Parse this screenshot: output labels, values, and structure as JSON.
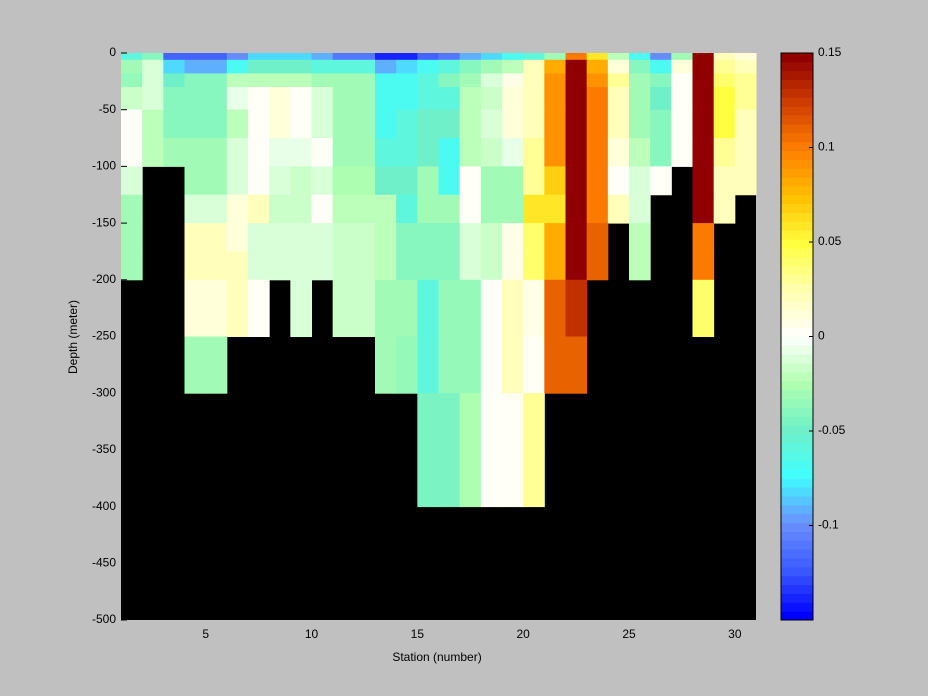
{
  "chart_data": {
    "type": "heatmap",
    "xlabel": "Station (number)",
    "ylabel": "Depth (meter)",
    "x_bins": [
      1,
      2,
      3,
      4,
      5,
      6,
      7,
      8,
      9,
      10,
      11,
      12,
      13,
      14,
      15,
      16,
      17,
      18,
      19,
      20,
      21,
      22,
      23,
      24,
      25,
      26,
      27,
      28,
      29,
      30,
      31
    ],
    "y_bins": [
      0,
      -6,
      -18,
      -30,
      -50,
      -75,
      -100,
      -125,
      -150,
      -175,
      -200,
      -250,
      -300,
      -350,
      -400
    ],
    "z": [
      [
        -0.06,
        -0.04,
        -0.12,
        -0.12,
        -0.12,
        -0.1,
        -0.08,
        -0.08,
        -0.08,
        -0.09,
        -0.11,
        -0.11,
        -0.14,
        -0.14,
        -0.12,
        -0.11,
        -0.09,
        -0.08,
        -0.07,
        -0.06,
        -0.03,
        0.1,
        0.06,
        -0.02,
        -0.07,
        -0.1,
        -0.03,
        0.15,
        0.02,
        0.01
      ],
      [
        -0.03,
        -0.01,
        -0.08,
        -0.09,
        -0.09,
        -0.07,
        -0.05,
        -0.05,
        -0.05,
        -0.06,
        -0.06,
        -0.06,
        -0.09,
        -0.08,
        -0.07,
        -0.06,
        -0.04,
        -0.03,
        -0.02,
        0.02,
        0.08,
        0.15,
        0.08,
        0.01,
        -0.04,
        -0.07,
        0.01,
        0.15,
        0.03,
        0.02
      ],
      [
        -0.035,
        -0.01,
        -0.05,
        -0.04,
        -0.04,
        -0.02,
        -0.02,
        -0.02,
        -0.02,
        -0.03,
        -0.03,
        -0.03,
        -0.07,
        -0.07,
        -0.06,
        -0.04,
        -0.03,
        -0.01,
        0.005,
        0.02,
        0.09,
        0.15,
        0.09,
        0.03,
        -0.03,
        -0.04,
        0,
        0.15,
        0.04,
        0.03
      ],
      [
        -0.015,
        -0.01,
        -0.04,
        -0.04,
        -0.04,
        -0.005,
        0,
        0.01,
        0,
        -0.01,
        -0.03,
        -0.03,
        -0.07,
        -0.07,
        -0.06,
        -0.06,
        -0.02,
        -0.015,
        0.01,
        0.02,
        0.09,
        0.15,
        0.1,
        0.02,
        -0.03,
        -0.05,
        0,
        0.15,
        0.05,
        0.03
      ],
      [
        0,
        -0.02,
        -0.04,
        -0.04,
        -0.04,
        -0.02,
        0,
        0.01,
        0,
        -0.01,
        -0.03,
        -0.03,
        -0.07,
        -0.06,
        -0.05,
        -0.05,
        -0.02,
        -0.01,
        0.01,
        0.02,
        0.09,
        0.15,
        0.1,
        0.02,
        -0.03,
        -0.04,
        0,
        0.15,
        0.05,
        0.02
      ],
      [
        0,
        -0.02,
        -0.03,
        -0.03,
        -0.03,
        -0.01,
        0,
        -0.005,
        -0.005,
        0,
        -0.03,
        -0.03,
        -0.06,
        -0.06,
        -0.05,
        -0.07,
        -0.02,
        -0.015,
        -0.005,
        0.03,
        0.09,
        0.15,
        0.1,
        0.01,
        -0.02,
        -0.04,
        0,
        0.15,
        0.03,
        0.02
      ],
      [
        -0.01,
        null,
        null,
        -0.03,
        -0.03,
        -0.01,
        0,
        -0.01,
        -0.015,
        -0.01,
        -0.025,
        -0.025,
        -0.05,
        -0.05,
        -0.03,
        -0.07,
        0,
        -0.03,
        -0.03,
        0.03,
        0.07,
        0.15,
        0.1,
        0,
        -0.01,
        0,
        null,
        0.15,
        0.02,
        0.02
      ],
      [
        -0.03,
        null,
        null,
        -0.01,
        -0.01,
        0.01,
        0.02,
        -0.015,
        -0.015,
        0,
        -0.02,
        -0.02,
        -0.02,
        -0.06,
        -0.03,
        -0.03,
        0,
        -0.03,
        -0.03,
        0.06,
        0.06,
        0.15,
        0.1,
        0.02,
        -0.01,
        null,
        null,
        0.15,
        0.02,
        null
      ],
      [
        -0.03,
        null,
        null,
        0.02,
        0.02,
        0.01,
        -0.01,
        -0.01,
        -0.01,
        -0.01,
        -0.015,
        -0.015,
        -0.02,
        -0.04,
        -0.04,
        -0.04,
        -0.01,
        -0.015,
        0.005,
        0.04,
        0.08,
        0.15,
        0.11,
        null,
        -0.02,
        null,
        null,
        0.1,
        null,
        null
      ],
      [
        -0.03,
        null,
        null,
        0.02,
        0.02,
        0.02,
        -0.01,
        -0.01,
        -0.01,
        -0.01,
        -0.015,
        -0.015,
        -0.02,
        -0.04,
        -0.04,
        -0.04,
        -0.01,
        -0.015,
        0.005,
        0.04,
        0.08,
        0.15,
        0.11,
        null,
        -0.02,
        null,
        null,
        0.1,
        null,
        null
      ],
      [
        null,
        null,
        null,
        0.01,
        0.01,
        0.02,
        0,
        null,
        -0.01,
        null,
        -0.015,
        -0.015,
        -0.03,
        -0.03,
        -0.06,
        -0.035,
        -0.035,
        0,
        0.02,
        0.005,
        0.11,
        0.13,
        null,
        null,
        null,
        null,
        null,
        0.04,
        null,
        null
      ],
      [
        null,
        null,
        null,
        -0.03,
        -0.03,
        null,
        null,
        null,
        null,
        null,
        null,
        null,
        -0.03,
        -0.035,
        -0.06,
        -0.035,
        -0.035,
        0,
        0.02,
        0,
        0.11,
        0.11,
        null,
        null,
        null,
        null,
        null,
        null,
        null,
        null
      ],
      [
        null,
        null,
        null,
        null,
        null,
        null,
        null,
        null,
        null,
        null,
        null,
        null,
        null,
        null,
        -0.045,
        -0.045,
        -0.025,
        0.003,
        0.003,
        0.03,
        null,
        null,
        null,
        null,
        null,
        null,
        null,
        null,
        null,
        null
      ],
      [
        null,
        null,
        null,
        null,
        null,
        null,
        null,
        null,
        null,
        null,
        null,
        null,
        null,
        null,
        -0.045,
        -0.045,
        -0.025,
        0.003,
        0.003,
        0.03,
        null,
        null,
        null,
        null,
        null,
        null,
        null,
        null,
        null,
        null
      ]
    ],
    "xlim": [
      1,
      31
    ],
    "xticks": [
      5,
      10,
      15,
      20,
      25,
      30
    ],
    "ylim": [
      -500,
      0
    ],
    "yticks": [
      0,
      -50,
      -100,
      -150,
      -200,
      -250,
      -300,
      -350,
      -400,
      -450,
      -500
    ],
    "clim": [
      -0.15,
      0.15
    ],
    "cticks": [
      0.15,
      0.1,
      0.05,
      0,
      -0.05,
      -0.1
    ],
    "colormap": [
      "#0000ff",
      "#3c5cff",
      "#6a90ff",
      "#40ffff",
      "#70f0c8",
      "#b0ffb0",
      "#ffffff",
      "#ffffb0",
      "#ffff40",
      "#ffc000",
      "#ff8000",
      "#d04000",
      "#900000"
    ],
    "missing_color": "#000000"
  }
}
